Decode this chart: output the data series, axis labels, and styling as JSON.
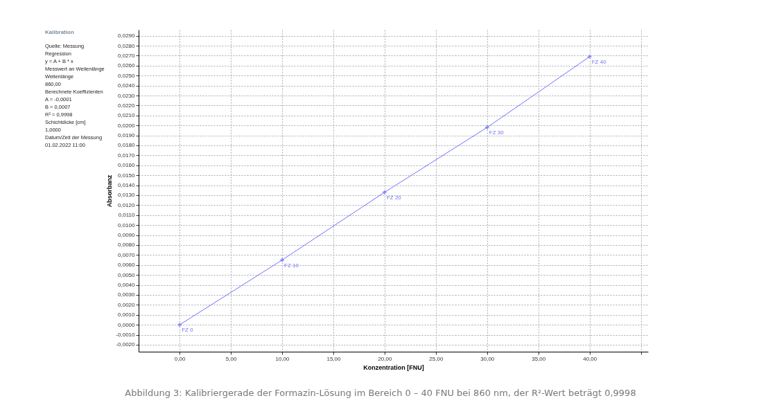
{
  "chart_data": {
    "type": "line",
    "title": "Kalibration",
    "xlabel": "Konzentration [FNU]",
    "ylabel": "Absorbanz",
    "series": [
      {
        "color": "#7070ff",
        "x": [
          0,
          10,
          20,
          30,
          40
        ],
        "values": [
          0.0,
          0.0065,
          0.0133,
          0.0198,
          0.0269
        ]
      }
    ],
    "marker": "cross",
    "line_style": "solid",
    "grid": true,
    "xlim": [
      -4.0,
      45.7
    ],
    "xticks": [
      {
        "value": 0,
        "label": "0,00"
      },
      {
        "value": 5,
        "label": "5,00"
      },
      {
        "value": 10,
        "label": "10,00"
      },
      {
        "value": 15,
        "label": "15,00"
      },
      {
        "value": 20,
        "label": "20,00"
      },
      {
        "value": 25,
        "label": "25,00"
      },
      {
        "value": 30,
        "label": "30,00"
      },
      {
        "value": 35,
        "label": "35,00"
      },
      {
        "value": 40,
        "label": "40,00"
      },
      {
        "value": 45,
        "label": null
      }
    ],
    "ylim": [
      -0.0027,
      0.0296
    ],
    "yticks": [
      {
        "value": -0.002,
        "label": "-0,0020"
      },
      {
        "value": -0.001,
        "label": "-0,0010"
      },
      {
        "value": 0.0,
        "label": "0,0000"
      },
      {
        "value": 0.001,
        "label": "0,0010"
      },
      {
        "value": 0.002,
        "label": "0,0020"
      },
      {
        "value": 0.003,
        "label": "0,0030"
      },
      {
        "value": 0.004,
        "label": "0,0040"
      },
      {
        "value": 0.005,
        "label": "0,0050"
      },
      {
        "value": 0.006,
        "label": "0,0060"
      },
      {
        "value": 0.007,
        "label": "0,0070"
      },
      {
        "value": 0.008,
        "label": "0,0080"
      },
      {
        "value": 0.009,
        "label": "0,0090"
      },
      {
        "value": 0.01,
        "label": "0,0100"
      },
      {
        "value": 0.011,
        "label": "0,0110"
      },
      {
        "value": 0.012,
        "label": "0,0120"
      },
      {
        "value": 0.013,
        "label": "0,0130"
      },
      {
        "value": 0.014,
        "label": "0,0140"
      },
      {
        "value": 0.015,
        "label": "0,0150"
      },
      {
        "value": 0.016,
        "label": "0,0160"
      },
      {
        "value": 0.017,
        "label": "0,0170"
      },
      {
        "value": 0.018,
        "label": "0,0180"
      },
      {
        "value": 0.019,
        "label": "0,0190"
      },
      {
        "value": 0.02,
        "label": "0,0200"
      },
      {
        "value": 0.021,
        "label": "0,0210"
      },
      {
        "value": 0.022,
        "label": "0,0220"
      },
      {
        "value": 0.023,
        "label": "0,0230"
      },
      {
        "value": 0.024,
        "label": "0,0240"
      },
      {
        "value": 0.025,
        "label": "0,0250"
      },
      {
        "value": 0.026,
        "label": "0,0260"
      },
      {
        "value": 0.027,
        "label": "0,0270"
      },
      {
        "value": 0.028,
        "label": "0,0280"
      },
      {
        "value": 0.029,
        "label": "0,0290"
      }
    ],
    "annotations": [
      {
        "text": "FZ 0",
        "x": 0,
        "y": 0.0
      },
      {
        "text": "FZ 10",
        "x": 10,
        "y": 0.0065
      },
      {
        "text": "FZ 20",
        "x": 20,
        "y": 0.0133
      },
      {
        "text": "FZ 30",
        "x": 30,
        "y": 0.0198
      },
      {
        "text": "FZ 40",
        "x": 40,
        "y": 0.0269
      },
      "Quelle: Messung",
      "Regression",
      "y = A + B * x",
      "Messwert an Wellenlänge",
      "Wellenlänge",
      "860,00",
      "Berechnete Koeffizienten",
      "A = -0,0001",
      "B = 0,0007",
      "R² = 0,9998",
      "Schichtdicke [cm]",
      "1,0000",
      "Datum/Zeit der Messung",
      "01.02.2022 11:00",
      "Abbildung 3: Kalibriergerade der Formazin-Lösung im Bereich 0 – 40 FNU bei 860 nm, der R²-Wert beträgt 0,9998"
    ]
  }
}
